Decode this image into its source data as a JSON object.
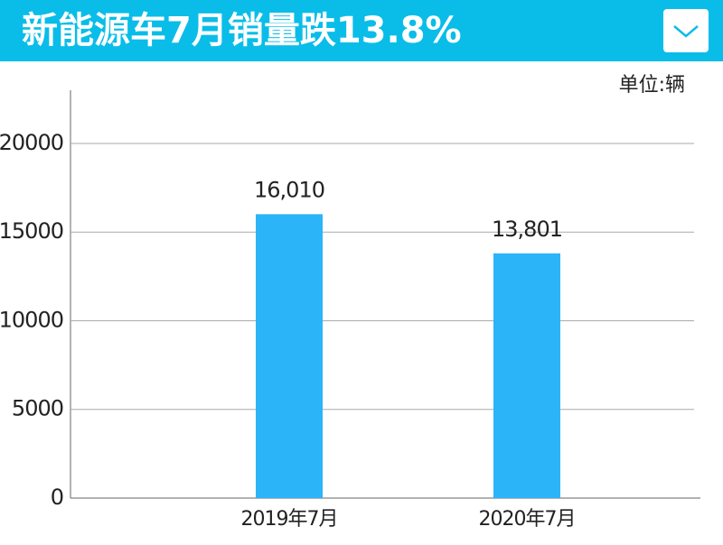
{
  "chart_data": {
    "type": "bar",
    "title": "新能源车7月销量跌13.8%",
    "unit_label": "单位:辆",
    "categories": [
      "2019年7月",
      "2020年7月"
    ],
    "values": [
      16010,
      13801
    ],
    "value_labels": [
      "16,010",
      "13,801"
    ],
    "color": "#2cb4f9",
    "ylim": [
      0,
      23000
    ],
    "yticks": [
      0,
      5000,
      10000,
      15000,
      20000
    ],
    "grid": true
  }
}
